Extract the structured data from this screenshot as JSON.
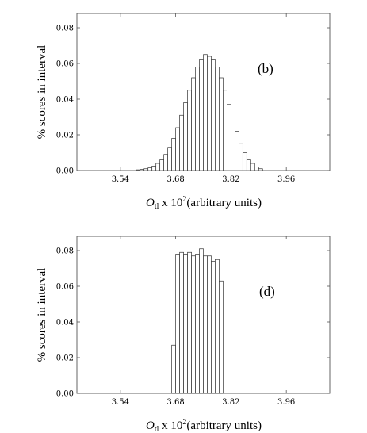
{
  "chart_data": [
    {
      "type": "bar",
      "panel_label": "(b)",
      "ylabel": "% scores in interval",
      "xlabel_main": "O",
      "xlabel_sub": "tl",
      "xlabel_mid": " x 10",
      "xlabel_sup": "2",
      "xlabel_tail": "(arbitrary units)",
      "xlim": [
        3.43,
        4.07
      ],
      "ylim": [
        0,
        0.088
      ],
      "bin_width": 0.01,
      "xticks": [
        3.54,
        3.68,
        3.82,
        3.96
      ],
      "xtick_labels": [
        "3.54",
        "3.68",
        "3.82",
        "3.96"
      ],
      "yticks": [
        0,
        0.02,
        0.04,
        0.06,
        0.08
      ],
      "ytick_labels": [
        "0.00",
        "0.02",
        "0.04",
        "0.06",
        "0.08"
      ],
      "bin_starts": [
        3.58,
        3.59,
        3.6,
        3.61,
        3.62,
        3.63,
        3.64,
        3.65,
        3.66,
        3.67,
        3.68,
        3.69,
        3.7,
        3.71,
        3.72,
        3.73,
        3.74,
        3.75,
        3.76,
        3.77,
        3.78,
        3.79,
        3.8,
        3.81,
        3.82,
        3.83,
        3.84,
        3.85,
        3.86,
        3.87,
        3.88,
        3.89
      ],
      "values": [
        0.0004,
        0.0006,
        0.001,
        0.0015,
        0.0025,
        0.004,
        0.006,
        0.009,
        0.013,
        0.018,
        0.024,
        0.031,
        0.038,
        0.045,
        0.052,
        0.058,
        0.062,
        0.065,
        0.064,
        0.062,
        0.058,
        0.052,
        0.045,
        0.037,
        0.03,
        0.022,
        0.015,
        0.01,
        0.006,
        0.004,
        0.002,
        0.001
      ]
    },
    {
      "type": "bar",
      "panel_label": "(d)",
      "ylabel": "% scores in interval",
      "xlabel_main": "O",
      "xlabel_sub": "tl",
      "xlabel_mid": " x 10",
      "xlabel_sup": "2",
      "xlabel_tail": "(arbitrary units)",
      "xlim": [
        3.43,
        4.07
      ],
      "ylim": [
        0,
        0.088
      ],
      "bin_width": 0.01,
      "xticks": [
        3.54,
        3.68,
        3.82,
        3.96
      ],
      "xtick_labels": [
        "3.54",
        "3.68",
        "3.82",
        "3.96"
      ],
      "yticks": [
        0,
        0.02,
        0.04,
        0.06,
        0.08
      ],
      "ytick_labels": [
        "0.00",
        "0.02",
        "0.04",
        "0.06",
        "0.08"
      ],
      "bin_starts": [
        3.67,
        3.68,
        3.69,
        3.7,
        3.71,
        3.72,
        3.73,
        3.74,
        3.75,
        3.76,
        3.77,
        3.78,
        3.79
      ],
      "values": [
        0.027,
        0.078,
        0.079,
        0.078,
        0.079,
        0.077,
        0.078,
        0.081,
        0.077,
        0.077,
        0.074,
        0.075,
        0.063
      ]
    }
  ]
}
